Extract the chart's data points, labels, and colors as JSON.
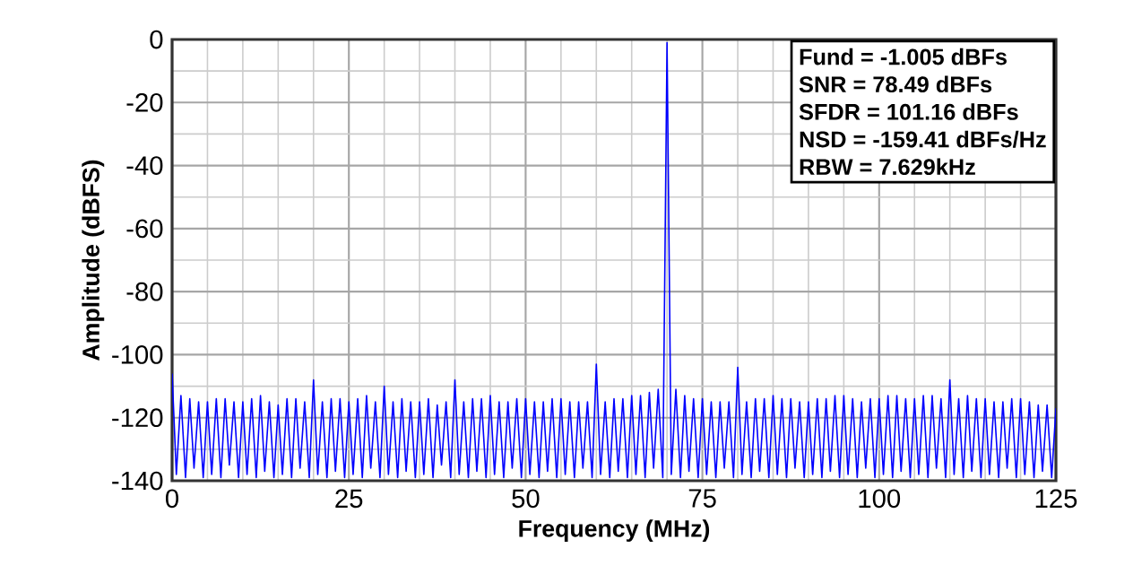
{
  "chart_data": {
    "type": "line",
    "xlabel": "Frequency (MHz)",
    "ylabel": "Amplitude (dBFS)",
    "xlim": [
      0,
      125
    ],
    "ylim": [
      -140,
      0
    ],
    "xticks": [
      0,
      25,
      50,
      75,
      100,
      125
    ],
    "yticks": [
      -140,
      -120,
      -100,
      -80,
      -60,
      -40,
      -20,
      0
    ],
    "grid": true,
    "annotations": [
      "Fund = -1.005 dBFs",
      "SNR = 78.49 dBFs",
      "SFDR = 101.16 dBFs",
      "NSD = -159.41 dBFs/Hz",
      "RBW = 7.629kHz"
    ],
    "series": [
      {
        "color": "#0000ff",
        "x": [
          0,
          0.6,
          1.25,
          1.9,
          2.5,
          3.1,
          3.75,
          4.4,
          5,
          5.6,
          6.25,
          6.9,
          7.5,
          8.1,
          8.75,
          9.4,
          10,
          10.6,
          11.25,
          11.9,
          12.5,
          13.1,
          13.75,
          14.4,
          15,
          15.6,
          16.25,
          16.9,
          17.5,
          18.1,
          18.75,
          19.4,
          20,
          20.6,
          21.25,
          21.9,
          22.5,
          23.1,
          23.75,
          24.4,
          25,
          25.6,
          26.25,
          26.9,
          27.5,
          28.1,
          28.75,
          29.4,
          30,
          30.6,
          31.25,
          31.9,
          32.5,
          33.1,
          33.75,
          34.4,
          35,
          35.6,
          36.25,
          36.9,
          37.5,
          38.1,
          38.75,
          39.4,
          40,
          40.6,
          41.25,
          41.9,
          42.5,
          43.1,
          43.75,
          44.4,
          45,
          45.6,
          46.25,
          46.9,
          47.5,
          48.1,
          48.75,
          49.4,
          50,
          50.6,
          51.25,
          51.9,
          52.5,
          53.1,
          53.75,
          54.4,
          55,
          55.6,
          56.25,
          56.9,
          57.5,
          58.1,
          58.75,
          59.4,
          60,
          60.6,
          61.25,
          61.9,
          62.5,
          63.1,
          63.75,
          64.4,
          65,
          65.6,
          66.25,
          66.9,
          67.5,
          68.1,
          68.75,
          69.4,
          70,
          70.6,
          71.25,
          71.9,
          72.5,
          73.1,
          73.75,
          74.4,
          75,
          75.6,
          76.25,
          76.9,
          77.5,
          78.1,
          78.75,
          79.4,
          80,
          80.6,
          81.25,
          81.9,
          82.5,
          83.1,
          83.75,
          84.4,
          85,
          85.6,
          86.25,
          86.9,
          87.5,
          88.1,
          88.75,
          89.4,
          90,
          90.6,
          91.25,
          91.9,
          92.5,
          93.1,
          93.75,
          94.4,
          95,
          95.6,
          96.25,
          96.9,
          97.5,
          98.1,
          98.75,
          99.4,
          100,
          100.6,
          101.25,
          101.9,
          102.5,
          103.1,
          103.75,
          104.4,
          105,
          105.6,
          106.25,
          106.9,
          107.5,
          108.1,
          108.75,
          109.4,
          110,
          110.6,
          111.25,
          111.9,
          112.5,
          113.1,
          113.75,
          114.4,
          115,
          115.6,
          116.25,
          116.9,
          117.5,
          118.1,
          118.75,
          119.4,
          120,
          120.6,
          121.25,
          121.9,
          122.5,
          123.1,
          123.75,
          124.4,
          125
        ],
        "values": [
          -106,
          -138,
          -113,
          -139,
          -114,
          -136,
          -115,
          -139,
          -115,
          -138,
          -114,
          -139,
          -114,
          -135,
          -115,
          -139,
          -115,
          -138,
          -114,
          -139,
          -113,
          -137,
          -115,
          -139,
          -116,
          -138,
          -114,
          -139,
          -114,
          -136,
          -115,
          -139,
          -108,
          -138,
          -115,
          -139,
          -114,
          -137,
          -114,
          -139,
          -115,
          -138,
          -114,
          -139,
          -113,
          -136,
          -115,
          -139,
          -110,
          -138,
          -115,
          -139,
          -114,
          -137,
          -115,
          -139,
          -115,
          -138,
          -114,
          -139,
          -116,
          -135,
          -115,
          -139,
          -108,
          -138,
          -115,
          -139,
          -114,
          -137,
          -114,
          -139,
          -113,
          -138,
          -115,
          -139,
          -115,
          -136,
          -114,
          -139,
          -114,
          -138,
          -115,
          -139,
          -115,
          -137,
          -114,
          -139,
          -114,
          -138,
          -115,
          -139,
          -115,
          -136,
          -115,
          -139,
          -103,
          -138,
          -115,
          -139,
          -114,
          -137,
          -114,
          -139,
          -113,
          -138,
          -113,
          -139,
          -112,
          -136,
          -111,
          -139,
          -1,
          -138,
          -111,
          -139,
          -113,
          -137,
          -114,
          -139,
          -114,
          -138,
          -115,
          -139,
          -115,
          -136,
          -115,
          -139,
          -104,
          -138,
          -115,
          -139,
          -114,
          -137,
          -114,
          -139,
          -113,
          -138,
          -114,
          -139,
          -114,
          -136,
          -115,
          -139,
          -115,
          -138,
          -114,
          -139,
          -114,
          -137,
          -113,
          -139,
          -113,
          -138,
          -114,
          -139,
          -115,
          -136,
          -114,
          -139,
          -114,
          -138,
          -113,
          -139,
          -113,
          -137,
          -114,
          -139,
          -114,
          -138,
          -113,
          -139,
          -113,
          -136,
          -114,
          -139,
          -108,
          -138,
          -114,
          -139,
          -113,
          -137,
          -114,
          -139,
          -114,
          -138,
          -115,
          -139,
          -115,
          -136,
          -114,
          -139,
          -114,
          -138,
          -115,
          -139,
          -116,
          -137,
          -116,
          -139,
          -117
        ]
      }
    ]
  }
}
